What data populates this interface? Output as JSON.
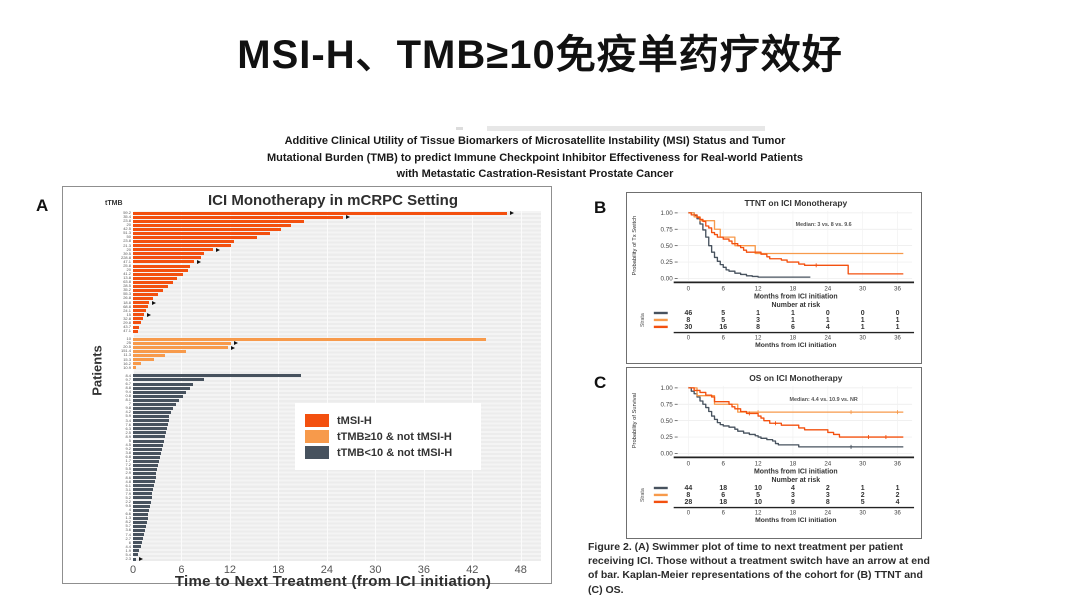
{
  "slide": {
    "title": "MSI-H、TMB≥10免疫单药疗效好"
  },
  "paper_title_lines": [
    "Additive Clinical Utility of Tissue Biomarkers of Microsatellite Instability (MSI) Status and Tumor",
    "Mutational Burden (TMB) to predict Immune Checkpoint Inhibitor Effectiveness for Real-world Patients",
    "with Metastatic Castration-Resistant Prostate Cancer"
  ],
  "panel_letters": {
    "a": "A",
    "b": "B",
    "c": "C"
  },
  "colors": {
    "msi_h": "#f3500f",
    "ttmb_ge10": "#f79a4b",
    "ttmb_lt10": "#47525e",
    "axis": "#222222",
    "grid": "#ebebeb"
  },
  "caption": {
    "bold": "Figure 2.",
    "text": " (A) Swimmer plot of time to next treatment per patient receiving ICI. Those without a treatment switch have an arrow at end of bar. Kaplan-Meier representations of the cohort for (B) TTNT and (C) OS."
  },
  "chart_data": [
    {
      "type": "bar",
      "variant": "swimmer",
      "title": "ICI Monotherapy in mCRPC Setting",
      "xlabel": "Time to Next Treatment (from ICI initiation)",
      "ylabel": "Patients",
      "col_header": "tTMB",
      "xticks": [
        0,
        6,
        12,
        18,
        24,
        30,
        36,
        42,
        48
      ],
      "xlim": [
        0,
        50.5
      ],
      "grid": true,
      "legend_position": "inside-right-middle",
      "series": [
        {
          "name": "tMSI-H",
          "color_key": "msi_h",
          "values": [
            46.3,
            26.0,
            21.2,
            19.6,
            18.3,
            16.9,
            15.4,
            12.5,
            12.1,
            9.9,
            8.8,
            8.4,
            7.6,
            7.0,
            6.8,
            6.2,
            5.5,
            4.9,
            4.3,
            3.7,
            3.1,
            2.5,
            2.0,
            1.8,
            1.6,
            1.4,
            1.2,
            1.0,
            0.8,
            0.6
          ],
          "arrows": [
            0,
            1,
            9,
            12,
            22,
            25
          ],
          "ttmb_labels": [
            "59.2",
            "35.4",
            "23.8",
            "20",
            "42.5",
            "51.3",
            "50",
            "23.8",
            "21.3",
            "20",
            "39.5",
            "228.8",
            "47.1",
            "25.8",
            "20",
            "41.2",
            "13.8",
            "63.8",
            "28.5",
            "35.2",
            "55.3",
            "26.8",
            "18.8",
            "68.8",
            "24.1",
            "15",
            "32.8",
            "29.8",
            "43.7",
            "47.1"
          ]
        },
        {
          "name": "tTMB≥10 & not tMSI-H",
          "color_key": "ttmb_ge10",
          "values": [
            43.7,
            12.1,
            11.7,
            6.6,
            3.9,
            2.6,
            1.0,
            0.4
          ],
          "arrows": [
            1,
            2
          ],
          "ttmb_labels": [
            "10",
            "25",
            "20.5",
            "151.4",
            "11.3",
            "15.3",
            "16.2",
            "10.9"
          ]
        },
        {
          "name": "tTMB<10 & not tMSI-H",
          "color_key": "ttmb_lt10",
          "values": [
            20.8,
            8.8,
            7.4,
            7.0,
            6.6,
            6.2,
            5.7,
            5.3,
            4.9,
            4.7,
            4.5,
            4.4,
            4.3,
            4.2,
            4.1,
            3.9,
            3.8,
            3.7,
            3.6,
            3.5,
            3.3,
            3.2,
            3.1,
            3.0,
            2.9,
            2.8,
            2.7,
            2.6,
            2.5,
            2.4,
            2.3,
            2.2,
            2.1,
            2.0,
            1.9,
            1.8,
            1.7,
            1.6,
            1.5,
            1.4,
            1.2,
            1.1,
            1.0,
            0.8,
            0.6,
            0.4
          ],
          "arrows": [
            45
          ],
          "ttmb_labels": [
            "8.4",
            "9.7",
            "6.7",
            "8.8",
            "9.4",
            "0.8",
            "8.1",
            "7",
            "9.8",
            "4.2",
            "5.9",
            "3.4",
            "7.6",
            "6.3",
            "2.5",
            "8.9",
            "5",
            "4.5",
            "9.2",
            "3.8",
            "6.8",
            "1.7",
            "7.2",
            "5.5",
            "2.9",
            "8.6",
            "4.8",
            "6.1",
            "3.1",
            "7.9",
            "5.2",
            "2.2",
            "9.5",
            "4",
            "6.6",
            "1.3",
            "8.2",
            "5.7",
            "3.6",
            "7.4",
            "2.7",
            "6",
            "4.4",
            "1.9",
            "5.4",
            "2.3"
          ]
        }
      ]
    },
    {
      "type": "line",
      "variant": "kaplan-meier",
      "title": "TTNT on ICI Monotherapy",
      "ylabel": "Probability of Tx Switch",
      "xlabel": "Months from ICI initiation",
      "annotation": "Median: 3 vs. 8 vs. 9.6",
      "yticks": [
        "1.00",
        "0.75",
        "0.50",
        "0.25",
        "0.00"
      ],
      "xticks": [
        0,
        6,
        12,
        18,
        24,
        30,
        36
      ],
      "ylim": [
        0,
        1
      ],
      "grid": true,
      "risk_header": "Number at risk",
      "strata_label": "Strata",
      "series": [
        {
          "name": "tTMB<10 & not tMSI-H",
          "color_key": "ttmb_lt10",
          "steps": [
            [
              0,
              1
            ],
            [
              1,
              0.96
            ],
            [
              1.5,
              0.91
            ],
            [
              2,
              0.83
            ],
            [
              2.5,
              0.74
            ],
            [
              3,
              0.63
            ],
            [
              3.5,
              0.5
            ],
            [
              4,
              0.4
            ],
            [
              4.5,
              0.32
            ],
            [
              5,
              0.26
            ],
            [
              5.5,
              0.21
            ],
            [
              6,
              0.17
            ],
            [
              6.5,
              0.13
            ],
            [
              7,
              0.11
            ],
            [
              8,
              0.08
            ],
            [
              9,
              0.06
            ],
            [
              10,
              0.04
            ],
            [
              11,
              0.03
            ],
            [
              12,
              0.02
            ],
            [
              21,
              0.02
            ]
          ],
          "censors": [],
          "at_risk": [
            46,
            5,
            1,
            1,
            0,
            0,
            0
          ]
        },
        {
          "name": "tTMB≥10 & not tMSI-H",
          "color_key": "ttmb_ge10",
          "steps": [
            [
              0,
              1
            ],
            [
              1,
              0.94
            ],
            [
              2,
              0.88
            ],
            [
              4,
              0.88
            ],
            [
              4.5,
              0.75
            ],
            [
              5.5,
              0.63
            ],
            [
              7.5,
              0.63
            ],
            [
              8,
              0.5
            ],
            [
              11,
              0.5
            ],
            [
              11.5,
              0.38
            ],
            [
              37,
              0.38
            ]
          ],
          "censors": [],
          "at_risk": [
            8,
            5,
            3,
            1,
            1,
            1,
            1
          ]
        },
        {
          "name": "tMSI-H",
          "color_key": "msi_h",
          "steps": [
            [
              0,
              1
            ],
            [
              0.5,
              0.97
            ],
            [
              1.5,
              0.93
            ],
            [
              2,
              0.9
            ],
            [
              2.5,
              0.87
            ],
            [
              3,
              0.8
            ],
            [
              3.5,
              0.77
            ],
            [
              4,
              0.7
            ],
            [
              4.5,
              0.67
            ],
            [
              5,
              0.63
            ],
            [
              6,
              0.6
            ],
            [
              7,
              0.57
            ],
            [
              7.5,
              0.53
            ],
            [
              8.5,
              0.5
            ],
            [
              9,
              0.47
            ],
            [
              9.5,
              0.43
            ],
            [
              10,
              0.4
            ],
            [
              12,
              0.4
            ],
            [
              12.5,
              0.37
            ],
            [
              13.5,
              0.33
            ],
            [
              14,
              0.3
            ],
            [
              16,
              0.28
            ],
            [
              17,
              0.25
            ],
            [
              19,
              0.22
            ],
            [
              20,
              0.2
            ],
            [
              27,
              0.2
            ],
            [
              27.5,
              0.07
            ],
            [
              37,
              0.07
            ]
          ],
          "censors": [
            [
              22,
              0.2
            ]
          ],
          "at_risk": [
            30,
            16,
            8,
            6,
            4,
            1,
            1
          ]
        }
      ]
    },
    {
      "type": "line",
      "variant": "kaplan-meier",
      "title": "OS on ICI Monotherapy",
      "ylabel": "Probability of Survival",
      "xlabel": "Months from ICI initiation",
      "annotation": "Median: 4.4 vs. 10.9 vs. NR",
      "yticks": [
        "1.00",
        "0.75",
        "0.50",
        "0.25",
        "0.00"
      ],
      "xticks": [
        0,
        6,
        12,
        18,
        24,
        30,
        36
      ],
      "ylim": [
        0,
        1
      ],
      "grid": true,
      "risk_header": "Number at risk",
      "strata_label": "Strata",
      "series": [
        {
          "name": "tTMB<10 & not tMSI-H",
          "color_key": "ttmb_lt10",
          "steps": [
            [
              0,
              1
            ],
            [
              0.5,
              0.95
            ],
            [
              1,
              0.91
            ],
            [
              1.5,
              0.86
            ],
            [
              2,
              0.8
            ],
            [
              2.5,
              0.75
            ],
            [
              3,
              0.7
            ],
            [
              3.5,
              0.64
            ],
            [
              4,
              0.57
            ],
            [
              4.5,
              0.52
            ],
            [
              5,
              0.47
            ],
            [
              5.5,
              0.44
            ],
            [
              6,
              0.42
            ],
            [
              7,
              0.4
            ],
            [
              8,
              0.37
            ],
            [
              8.5,
              0.34
            ],
            [
              9.5,
              0.31
            ],
            [
              10.5,
              0.29
            ],
            [
              11.5,
              0.27
            ],
            [
              12,
              0.25
            ],
            [
              12.5,
              0.23
            ],
            [
              13.5,
              0.21
            ],
            [
              14.5,
              0.19
            ],
            [
              15,
              0.15
            ],
            [
              15.5,
              0.13
            ],
            [
              18.5,
              0.13
            ],
            [
              19,
              0.1
            ],
            [
              37,
              0.1
            ]
          ],
          "censors": [
            [
              28,
              0.1
            ]
          ],
          "at_risk": [
            44,
            18,
            10,
            4,
            2,
            1,
            1
          ]
        },
        {
          "name": "tTMB≥10 & not tMSI-H",
          "color_key": "ttmb_ge10",
          "steps": [
            [
              0,
              1
            ],
            [
              1.5,
              0.88
            ],
            [
              4,
              0.88
            ],
            [
              4.5,
              0.75
            ],
            [
              8,
              0.75
            ],
            [
              8.5,
              0.63
            ],
            [
              37,
              0.63
            ]
          ],
          "censors": [
            [
              12,
              0.63
            ],
            [
              28,
              0.63
            ],
            [
              36,
              0.63
            ]
          ],
          "at_risk": [
            8,
            6,
            5,
            3,
            3,
            2,
            2
          ]
        },
        {
          "name": "tMSI-H",
          "color_key": "msi_h",
          "steps": [
            [
              0,
              1
            ],
            [
              1,
              0.96
            ],
            [
              2,
              0.93
            ],
            [
              3,
              0.89
            ],
            [
              4,
              0.86
            ],
            [
              4.5,
              0.79
            ],
            [
              7,
              0.75
            ],
            [
              7.5,
              0.71
            ],
            [
              8,
              0.68
            ],
            [
              9,
              0.64
            ],
            [
              10,
              0.61
            ],
            [
              12,
              0.57
            ],
            [
              12.5,
              0.54
            ],
            [
              13,
              0.5
            ],
            [
              14,
              0.46
            ],
            [
              16,
              0.43
            ],
            [
              18,
              0.43
            ],
            [
              19,
              0.39
            ],
            [
              20,
              0.36
            ],
            [
              24,
              0.32
            ],
            [
              25,
              0.29
            ],
            [
              26,
              0.25
            ],
            [
              37,
              0.25
            ]
          ],
          "censors": [
            [
              10.5,
              0.61
            ],
            [
              15,
              0.46
            ],
            [
              31,
              0.25
            ],
            [
              34,
              0.25
            ]
          ],
          "at_risk": [
            28,
            18,
            10,
            9,
            8,
            5,
            4
          ]
        }
      ]
    }
  ]
}
